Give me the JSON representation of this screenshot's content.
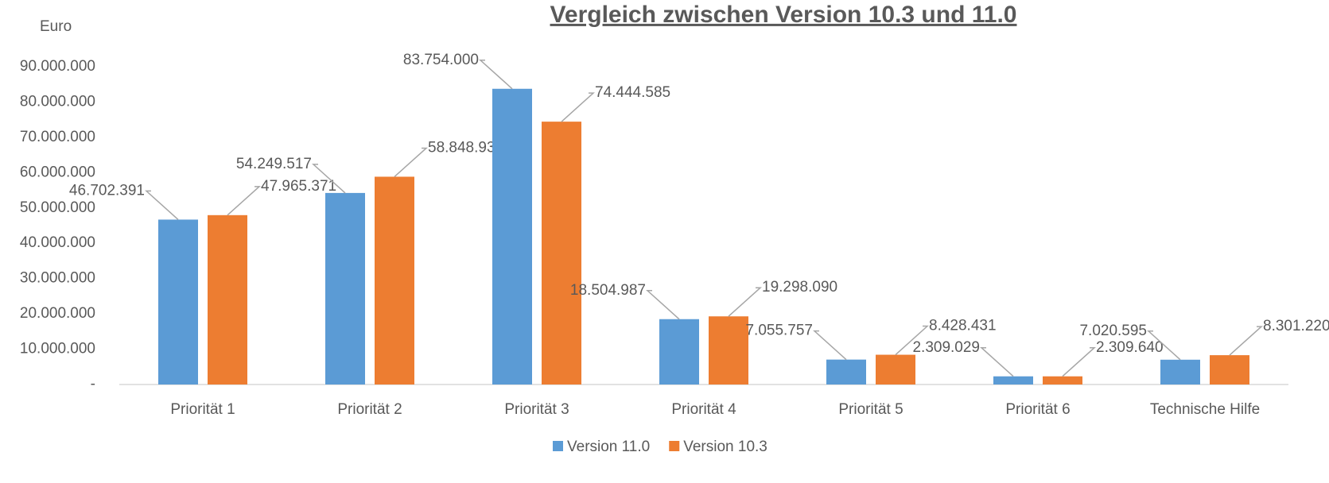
{
  "chart_data": {
    "type": "bar",
    "title": "Vergleich zwischen Version 10.3 und 11.0",
    "y_axis_label": "Euro",
    "categories": [
      "Priorität 1",
      "Priorität 2",
      "Priorität 3",
      "Priorität 4",
      "Priorität 5",
      "Priorität 6",
      "Technische Hilfe"
    ],
    "series": [
      {
        "name": "Version 11.0",
        "color": "#5b9bd5",
        "values": [
          46702391,
          54249517,
          83754000,
          18504987,
          7055757,
          2309029,
          7020595
        ],
        "value_labels": [
          "46.702.391",
          "54.249.517",
          "83.754.000",
          "18.504.987",
          "7.055.757",
          "2.309.029",
          "7.020.595"
        ]
      },
      {
        "name": "Version 10.3",
        "color": "#ed7d31",
        "values": [
          47965371,
          58848939,
          74444585,
          19298090,
          8428431,
          2309640,
          8301220
        ],
        "value_labels": [
          "47.965.371",
          "58.848.939",
          "74.444.585",
          "19.298.090",
          "8.428.431",
          "2.309.640",
          "8.301.220"
        ]
      }
    ],
    "ylim": [
      0,
      90000000
    ],
    "yticks": [
      {
        "value": 0,
        "label": "-"
      },
      {
        "value": 10000000,
        "label": "10.000.000"
      },
      {
        "value": 20000000,
        "label": "20.000.000"
      },
      {
        "value": 30000000,
        "label": "30.000.000"
      },
      {
        "value": 40000000,
        "label": "40.000.000"
      },
      {
        "value": 50000000,
        "label": "50.000.000"
      },
      {
        "value": 60000000,
        "label": "60.000.000"
      },
      {
        "value": 70000000,
        "label": "70.000.000"
      },
      {
        "value": 80000000,
        "label": "80.000.000"
      },
      {
        "value": 90000000,
        "label": "90.000.000"
      }
    ],
    "grid": false,
    "legend": "bottom"
  }
}
